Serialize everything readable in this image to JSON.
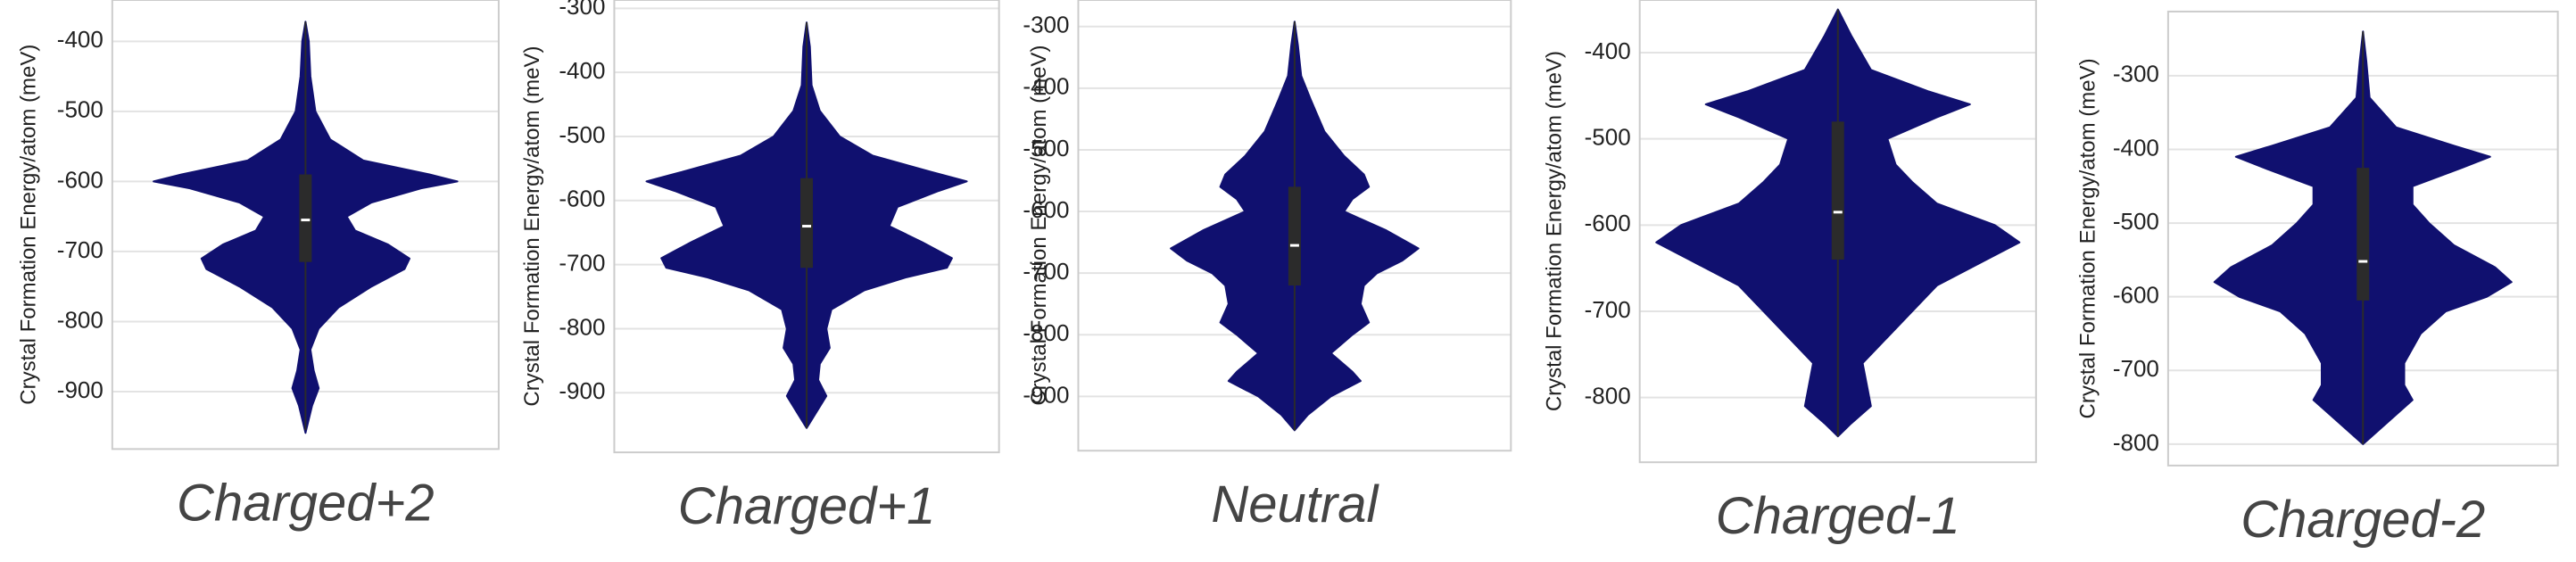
{
  "chart_data": [
    {
      "type": "violin",
      "xlabel": "Charged+2",
      "ylabel": "Crystal Formation Energy/atom (meV)",
      "color": "#10106f",
      "ylim": [
        -982,
        -341
      ],
      "yticks": [
        -900,
        -800,
        -700,
        -600,
        -500,
        -400
      ],
      "grid": true,
      "profile": {
        "y": [
          -372,
          -400,
          -450,
          -500,
          -540,
          -570,
          -590,
          -600,
          -610,
          -630,
          -650,
          -670,
          -690,
          -710,
          -725,
          -750,
          -780,
          -810,
          -840,
          -870,
          -895,
          -920,
          -959
        ],
        "density": [
          0,
          2,
          3,
          6,
          15,
          35,
          75,
          92,
          70,
          40,
          25,
          30,
          50,
          63,
          60,
          40,
          20,
          8,
          3,
          5,
          8,
          4,
          0
        ]
      },
      "box": {
        "whisker_high": -372,
        "q3": -590,
        "median": -655,
        "q1": -715,
        "whisker_low": -955
      }
    },
    {
      "type": "violin",
      "xlabel": "Charged+1",
      "ylabel": "Crystal Formation Energy/atom (meV)",
      "color": "#10106f",
      "ylim": [
        -993,
        -287
      ],
      "yticks": [
        -900,
        -800,
        -700,
        -600,
        -500,
        -400,
        -300
      ],
      "grid": true,
      "profile": {
        "y": [
          -322,
          -360,
          -420,
          -460,
          -500,
          -530,
          -555,
          -570,
          -585,
          -610,
          -640,
          -665,
          -690,
          -705,
          -720,
          -740,
          -770,
          -800,
          -830,
          -855,
          -880,
          -905,
          -930,
          -955
        ],
        "density": [
          0,
          2,
          3,
          8,
          20,
          40,
          75,
          97,
          80,
          55,
          50,
          70,
          88,
          85,
          60,
          35,
          15,
          12,
          14,
          8,
          7,
          12,
          6,
          0
        ]
      },
      "box": {
        "whisker_high": -322,
        "q3": -565,
        "median": -640,
        "q1": -705,
        "whisker_low": -955
      }
    },
    {
      "type": "violin",
      "xlabel": "Neutral",
      "ylabel": "Crystal Formation Energy/atom (meV)",
      "color": "#10106f",
      "ylim": [
        -988,
        -257
      ],
      "yticks": [
        -900,
        -800,
        -700,
        -600,
        -500,
        -400,
        -300
      ],
      "grid": true,
      "profile": {
        "y": [
          -292,
          -330,
          -380,
          -420,
          -470,
          -510,
          -540,
          -560,
          -580,
          -600,
          -630,
          -660,
          -680,
          -700,
          -720,
          -750,
          -780,
          -800,
          -830,
          -860,
          -875,
          -900,
          -930,
          -955
        ],
        "density": [
          0,
          2,
          4,
          10,
          18,
          30,
          42,
          45,
          35,
          30,
          55,
          75,
          65,
          50,
          42,
          40,
          45,
          35,
          22,
          35,
          40,
          22,
          8,
          0
        ]
      },
      "box": {
        "whisker_high": -292,
        "q3": -560,
        "median": -655,
        "q1": -720,
        "whisker_low": -955
      }
    },
    {
      "type": "violin",
      "xlabel": "Charged-1",
      "ylabel": "Crystal Formation Energy/atom (meV)",
      "color": "#10106f",
      "ylim": [
        -875,
        -339
      ],
      "yticks": [
        -800,
        -700,
        -600,
        -500,
        -400
      ],
      "grid": true,
      "profile": {
        "y": [
          -350,
          -380,
          -420,
          -445,
          -460,
          -475,
          -500,
          -530,
          -550,
          -575,
          -600,
          -620,
          -640,
          -670,
          -700,
          -730,
          -760,
          -790,
          -810,
          -830,
          -845
        ],
        "density": [
          0,
          8,
          20,
          55,
          80,
          60,
          30,
          35,
          45,
          60,
          95,
          110,
          90,
          60,
          45,
          30,
          15,
          18,
          20,
          8,
          0
        ]
      },
      "box": {
        "whisker_high": -350,
        "q3": -480,
        "median": -585,
        "q1": -640,
        "whisker_low": -845
      }
    },
    {
      "type": "violin",
      "xlabel": "Charged-2",
      "ylabel": "Crystal Formation Energy/atom (meV)",
      "color": "#10106f",
      "ylim": [
        -829,
        -213
      ],
      "yticks": [
        -800,
        -700,
        -600,
        -500,
        -400,
        -300
      ],
      "grid": true,
      "profile": {
        "y": [
          -240,
          -280,
          -330,
          -370,
          -395,
          -410,
          -425,
          -450,
          -475,
          -500,
          -530,
          -560,
          -580,
          -600,
          -620,
          -650,
          -690,
          -720,
          -740,
          -760,
          -780,
          -800
        ],
        "density": [
          0,
          2,
          4,
          20,
          55,
          77,
          60,
          30,
          30,
          40,
          55,
          80,
          90,
          75,
          50,
          35,
          25,
          25,
          30,
          20,
          10,
          0
        ]
      },
      "box": {
        "whisker_high": -240,
        "q3": -425,
        "median": -552,
        "q1": -605,
        "whisker_low": -800
      }
    }
  ]
}
